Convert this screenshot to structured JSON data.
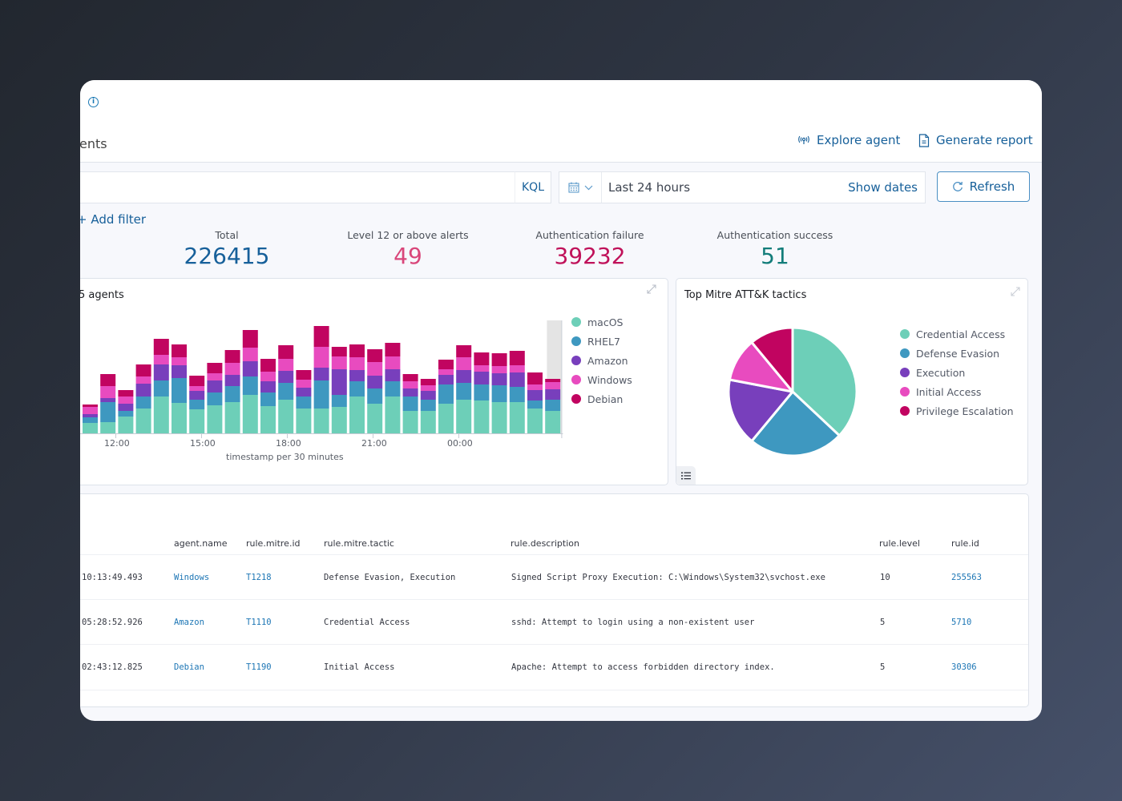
{
  "header": {
    "tab_partial": "ents",
    "explore_agent": "Explore agent",
    "generate_report": "Generate report"
  },
  "query": {
    "language": "KQL",
    "time_range": "Last 24 hours",
    "show_dates": "Show dates",
    "refresh": "Refresh",
    "add_filter": "+ Add filter"
  },
  "stats": [
    {
      "label": "Total",
      "value": "226415",
      "color": "#17609a"
    },
    {
      "label": "Level 12 or above alerts",
      "value": "49",
      "color": "#d9467a"
    },
    {
      "label": "Authentication failure",
      "value": "39232",
      "color": "#c0125a"
    },
    {
      "label": "Authentication success",
      "value": "51",
      "color": "#137d7a"
    }
  ],
  "chart_data": [
    {
      "type": "bar",
      "stacked": true,
      "title": "5 agents",
      "xlabel": "timestamp per 30 minutes",
      "ylabel": "",
      "x_tick_labels": [
        "12:00",
        "15:00",
        "18:00",
        "21:00",
        "00:00"
      ],
      "legend_position": "right",
      "series": [
        {
          "name": "macOS",
          "color": "#6dcfb8",
          "values": [
            13,
            14,
            21,
            31,
            46,
            38,
            30,
            35,
            39,
            48,
            34,
            42,
            31,
            31,
            33,
            46,
            37,
            46,
            28,
            28,
            37,
            42,
            41,
            39,
            39,
            31,
            28
          ]
        },
        {
          "name": "RHEL7",
          "color": "#3e98c0",
          "values": [
            7,
            25,
            7,
            15,
            20,
            31,
            12,
            16,
            20,
            23,
            17,
            21,
            15,
            35,
            15,
            19,
            19,
            19,
            18,
            14,
            24,
            21,
            20,
            21,
            19,
            10,
            14
          ]
        },
        {
          "name": "Amazon",
          "color": "#783fbc",
          "values": [
            4,
            5,
            9,
            16,
            20,
            16,
            11,
            15,
            14,
            19,
            14,
            15,
            11,
            16,
            32,
            14,
            16,
            15,
            10,
            11,
            12,
            16,
            16,
            15,
            18,
            13,
            13
          ]
        },
        {
          "name": "Windows",
          "color": "#e84bbf",
          "values": [
            9,
            15,
            9,
            9,
            12,
            10,
            6,
            9,
            15,
            17,
            12,
            15,
            10,
            26,
            16,
            16,
            17,
            16,
            9,
            7,
            7,
            16,
            8,
            9,
            9,
            7,
            9
          ]
        },
        {
          "name": "Debian",
          "color": "#c10460",
          "values": [
            3,
            15,
            8,
            15,
            20,
            16,
            13,
            13,
            16,
            22,
            16,
            17,
            12,
            26,
            12,
            16,
            16,
            17,
            9,
            8,
            12,
            15,
            16,
            16,
            18,
            15,
            4
          ]
        }
      ]
    },
    {
      "type": "pie",
      "title": "Top Mitre ATT&K tactics",
      "legend_position": "right",
      "categories": [
        "Credential Access",
        "Defense Evasion",
        "Execution",
        "Initial Access",
        "Privilege Escalation"
      ],
      "values": [
        37,
        24,
        17,
        11,
        11
      ],
      "colors": [
        "#6dcfb8",
        "#3e98c0",
        "#783fbc",
        "#e84bbf",
        "#c10460"
      ]
    }
  ],
  "table": {
    "columns": [
      "agent.name",
      "rule.mitre.id",
      "rule.mitre.tactic",
      "rule.description",
      "rule.level",
      "rule.id"
    ],
    "rows": [
      {
        "time": "10:13:49.493",
        "agent": "Windows",
        "mitre_id": "T1218",
        "tactic": "Defense Evasion, Execution",
        "description": "Signed Script Proxy Execution: C:\\Windows\\System32\\svchost.exe",
        "level": "10",
        "rule_id": "255563"
      },
      {
        "time": "05:28:52.926",
        "agent": "Amazon",
        "mitre_id": "T1110",
        "tactic": "Credential Access",
        "description": "sshd: Attempt to login using a non-existent user",
        "level": "5",
        "rule_id": "5710"
      },
      {
        "time": "02:43:12.825",
        "agent": "Debian",
        "mitre_id": "T1190",
        "tactic": "Initial Access",
        "description": "Apache: Attempt to access forbidden directory index.",
        "level": "5",
        "rule_id": "30306"
      }
    ]
  }
}
